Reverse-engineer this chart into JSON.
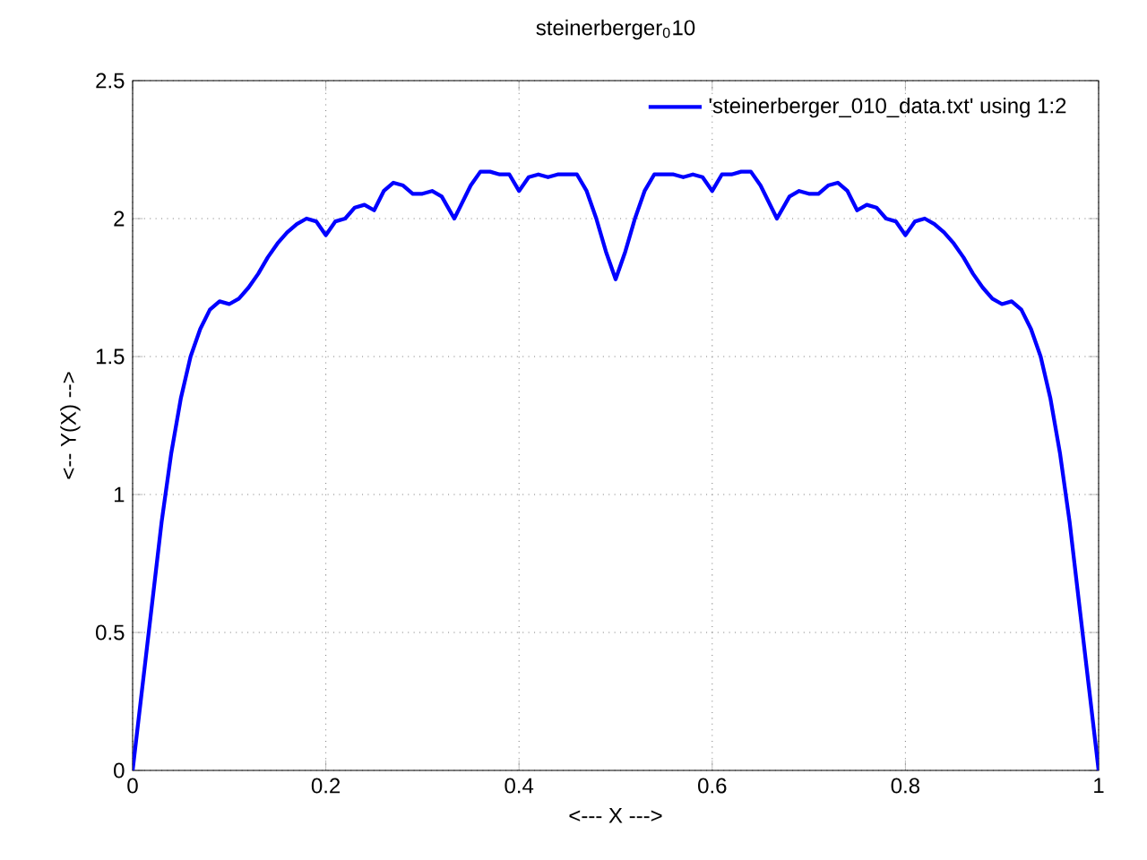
{
  "chart_data": {
    "type": "line",
    "title": "steinerberger$_{0}$10",
    "xlabel": "<--- X --->",
    "ylabel": "<-- Y(X) -->",
    "xlim": [
      0,
      1
    ],
    "ylim": [
      0,
      2.5
    ],
    "xticks": [
      0,
      0.2,
      0.4,
      0.6,
      0.8,
      1
    ],
    "yticks": [
      0,
      0.5,
      1,
      1.5,
      2,
      2.5
    ],
    "grid": true,
    "legend": "top right",
    "marker": "none",
    "line_style": "solid",
    "series": [
      {
        "name": "'steinerberger_010_data.txt' using 1:2",
        "color": "#0000ff",
        "x": [
          0,
          0.01,
          0.02,
          0.03,
          0.04,
          0.05,
          0.06,
          0.07,
          0.08,
          0.09,
          0.1,
          0.11,
          0.12,
          0.13,
          0.14,
          0.15,
          0.16,
          0.17,
          0.18,
          0.19,
          0.2,
          0.21,
          0.22,
          0.23,
          0.24,
          0.25,
          0.26,
          0.27,
          0.28,
          0.29,
          0.3,
          0.31,
          0.32,
          0.333,
          0.35,
          0.36,
          0.37,
          0.38,
          0.39,
          0.4,
          0.41,
          0.42,
          0.43,
          0.44,
          0.45,
          0.46,
          0.47,
          0.48,
          0.49,
          0.5,
          0.51,
          0.52,
          0.53,
          0.54,
          0.55,
          0.56,
          0.57,
          0.58,
          0.59,
          0.6,
          0.61,
          0.62,
          0.63,
          0.64,
          0.65,
          0.667,
          0.68,
          0.69,
          0.7,
          0.71,
          0.72,
          0.73,
          0.74,
          0.75,
          0.76,
          0.77,
          0.78,
          0.79,
          0.8,
          0.81,
          0.82,
          0.83,
          0.84,
          0.85,
          0.86,
          0.87,
          0.88,
          0.89,
          0.9,
          0.91,
          0.92,
          0.93,
          0.94,
          0.95,
          0.96,
          0.97,
          0.98,
          0.99,
          1
        ],
        "values": [
          0,
          0.3,
          0.6,
          0.9,
          1.15,
          1.35,
          1.5,
          1.6,
          1.67,
          1.7,
          1.69,
          1.71,
          1.75,
          1.8,
          1.86,
          1.91,
          1.95,
          1.98,
          2.0,
          1.99,
          1.94,
          1.99,
          2.0,
          2.04,
          2.05,
          2.03,
          2.1,
          2.13,
          2.12,
          2.09,
          2.09,
          2.1,
          2.08,
          2.0,
          2.12,
          2.17,
          2.17,
          2.16,
          2.16,
          2.1,
          2.15,
          2.16,
          2.15,
          2.16,
          2.16,
          2.16,
          2.1,
          2.0,
          1.88,
          1.78,
          1.88,
          2.0,
          2.1,
          2.16,
          2.16,
          2.16,
          2.15,
          2.16,
          2.15,
          2.1,
          2.16,
          2.16,
          2.17,
          2.17,
          2.12,
          2.0,
          2.08,
          2.1,
          2.09,
          2.09,
          2.12,
          2.13,
          2.1,
          2.03,
          2.05,
          2.04,
          2.0,
          1.99,
          1.94,
          1.99,
          2.0,
          1.98,
          1.95,
          1.91,
          1.86,
          1.8,
          1.75,
          1.71,
          1.69,
          1.7,
          1.67,
          1.6,
          1.5,
          1.35,
          1.15,
          0.9,
          0.6,
          0.3,
          0
        ]
      }
    ]
  }
}
